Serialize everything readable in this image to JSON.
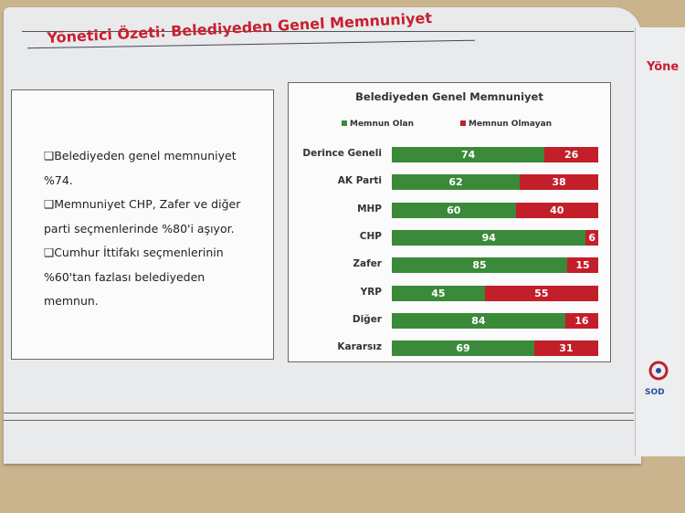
{
  "page_title": "Yönetici Özeti: Belediyeden Genel Memnuniyet",
  "bullets": [
    [
      "❑Belediyeden genel memnuniyet",
      "%74."
    ],
    [
      "❑Memnuniyet CHP, Zafer ve diğer",
      "parti seçmenlerinde %80'i aşıyor."
    ],
    [
      "❑Cumhur İttifakı seçmenlerinin",
      "%60'tan fazlası belediyeden",
      "memnun."
    ]
  ],
  "next_page_title": "Yöne",
  "chart_data": {
    "type": "bar",
    "orientation": "horizontal",
    "stacked": true,
    "title": "Belediyeden Genel Memnuniyet",
    "legend_placement": "top",
    "categories": [
      "Derince Geneli",
      "AK Parti",
      "MHP",
      "CHP",
      "Zafer",
      "YRP",
      "Diğer",
      "Kararsız"
    ],
    "series": [
      {
        "name": "Memnun Olan",
        "color": "#3a8a3a",
        "values": [
          74,
          62,
          60,
          94,
          85,
          45,
          84,
          69
        ]
      },
      {
        "name": "Memnun Olmayan",
        "color": "#c21f2b",
        "values": [
          26,
          38,
          40,
          6,
          15,
          55,
          16,
          31
        ]
      }
    ],
    "xlim": [
      0,
      100
    ],
    "grid": false
  }
}
